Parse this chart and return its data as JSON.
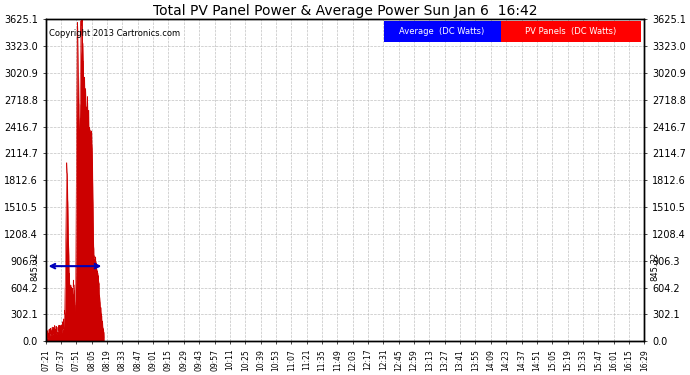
{
  "title": "Total PV Panel Power & Average Power Sun Jan 6  16:42",
  "copyright": "Copyright 2013 Cartronics.com",
  "legend_avg": "Average  (DC Watts)",
  "legend_pv": "PV Panels  (DC Watts)",
  "avg_value": 845.32,
  "yticks": [
    0.0,
    302.1,
    604.2,
    906.3,
    1208.4,
    1510.5,
    1812.6,
    2114.7,
    2416.7,
    2718.8,
    3020.9,
    3323.0,
    3625.1
  ],
  "ymax": 3625.1,
  "ymin": 0.0,
  "background_color": "#ffffff",
  "plot_bg_color": "#ffffff",
  "fill_color": "#cc0000",
  "avg_line_color": "#0000bb",
  "grid_color": "#bbbbbb",
  "title_color": "#000000",
  "xtick_labels": [
    "07:21",
    "07:37",
    "07:51",
    "08:05",
    "08:19",
    "08:33",
    "08:47",
    "09:01",
    "09:15",
    "09:29",
    "09:43",
    "09:57",
    "10:11",
    "10:25",
    "10:39",
    "10:53",
    "11:07",
    "11:21",
    "11:35",
    "11:49",
    "12:03",
    "12:17",
    "12:31",
    "12:45",
    "12:59",
    "13:13",
    "13:27",
    "13:41",
    "13:55",
    "14:09",
    "14:23",
    "14:37",
    "14:51",
    "15:05",
    "15:19",
    "15:33",
    "15:47",
    "16:01",
    "16:15",
    "16:29"
  ]
}
